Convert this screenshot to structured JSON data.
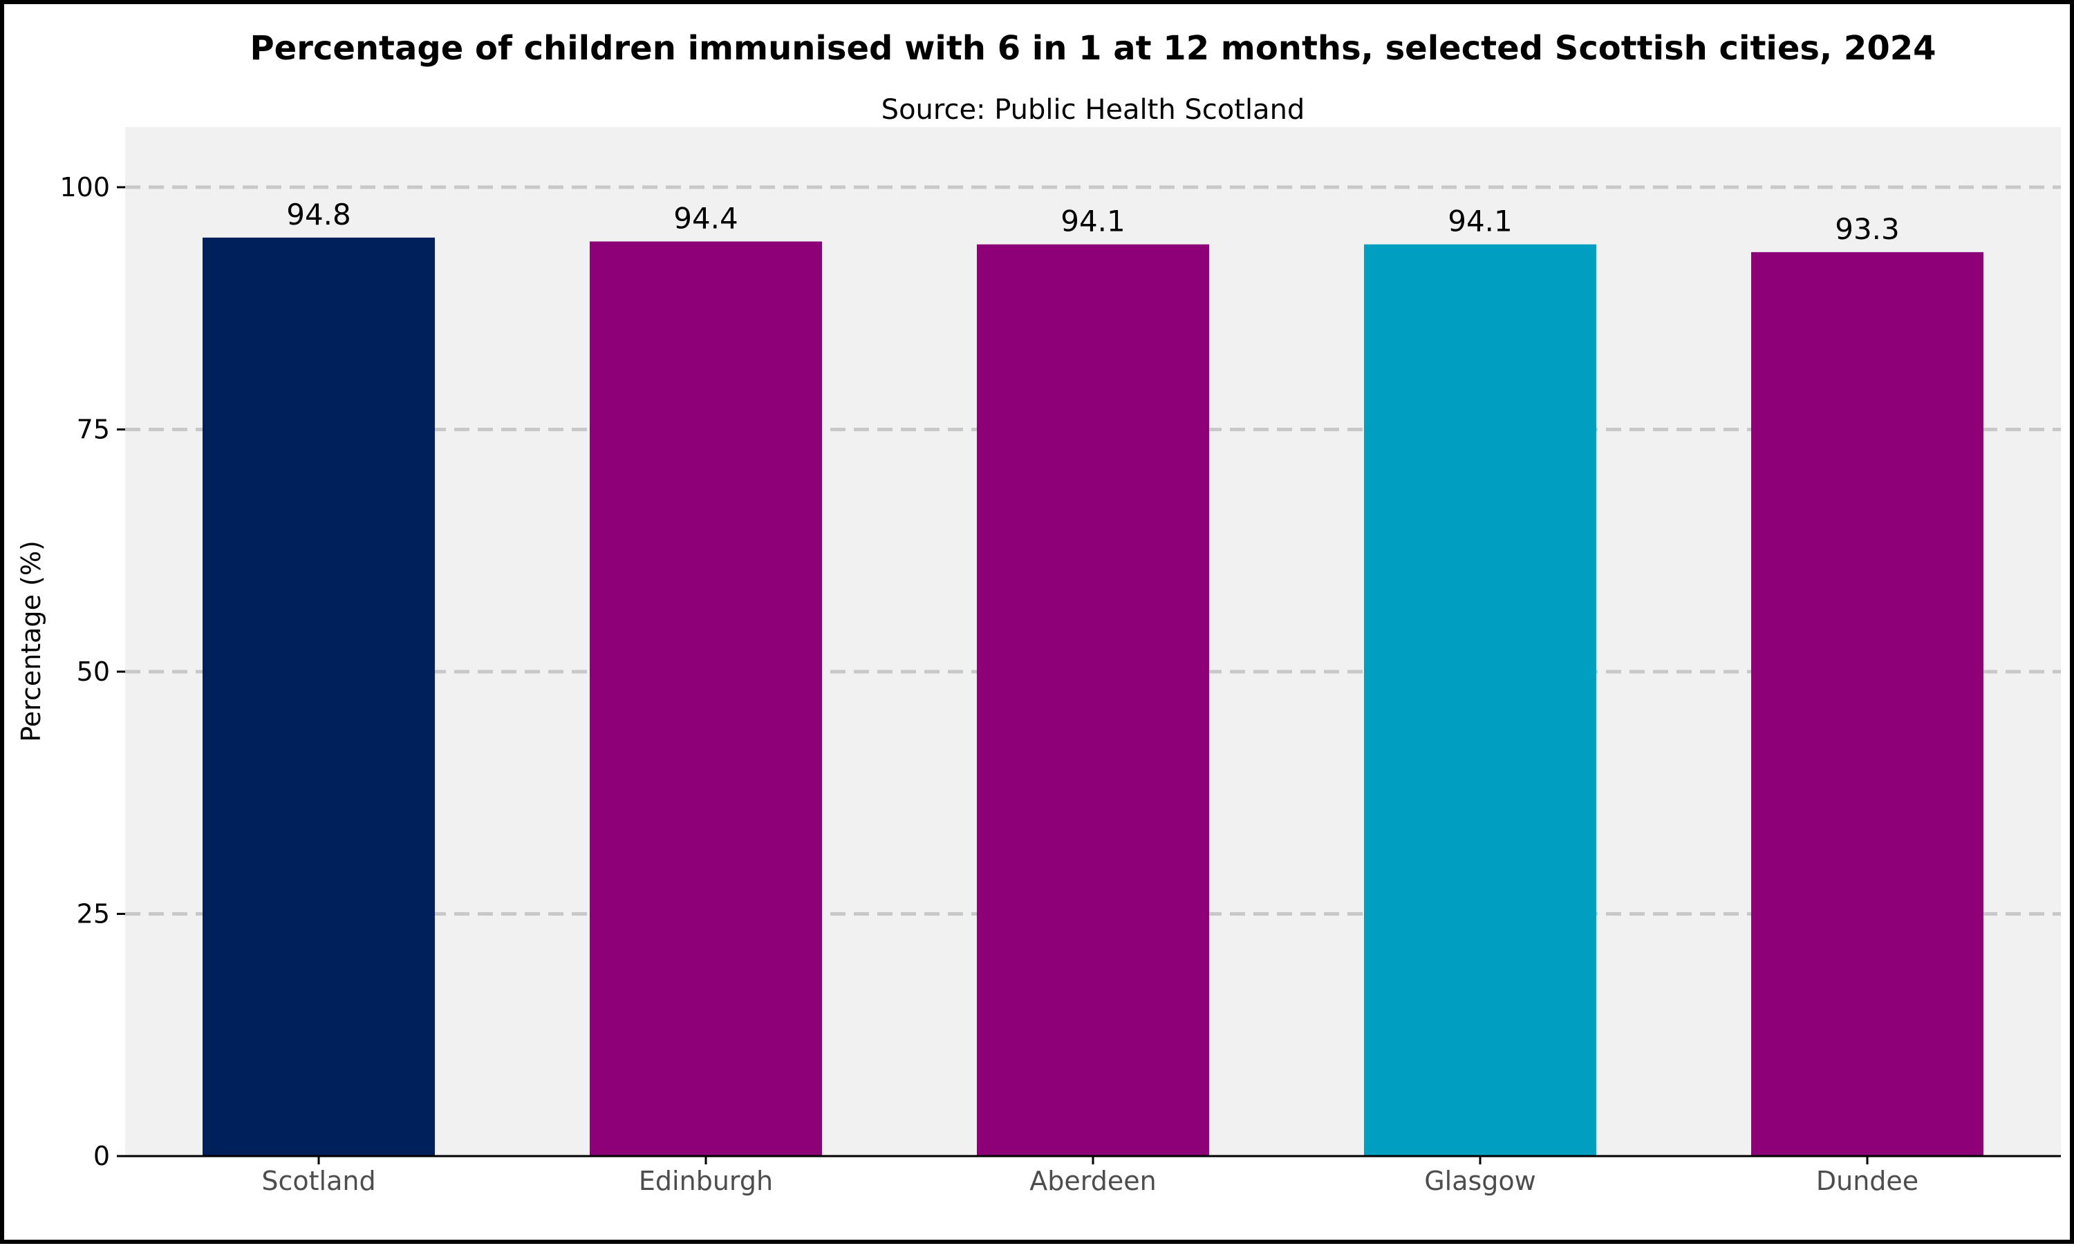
{
  "chart_data": {
    "type": "bar",
    "title": "Percentage of children immunised with 6 in 1 at 12 months, selected Scottish cities, 2024",
    "subtitle": "Source: Public Health Scotland",
    "xlabel": "",
    "ylabel": "Percentage (%)",
    "categories": [
      "Scotland",
      "Edinburgh",
      "Aberdeen",
      "Glasgow",
      "Dundee"
    ],
    "values": [
      94.8,
      94.4,
      94.1,
      94.1,
      93.3
    ],
    "data_labels": [
      "94.8",
      "94.4",
      "94.1",
      "94.1",
      "93.3"
    ],
    "bar_colors": [
      "#00205b",
      "#8e0078",
      "#8e0078",
      "#009ec0",
      "#8e0078"
    ],
    "yticks": [
      0,
      25,
      50,
      75,
      100
    ],
    "ytick_labels": [
      "0",
      "25",
      "50",
      "75",
      "100"
    ],
    "ylim": [
      0,
      106.2
    ],
    "grid": "horizontal dashed",
    "legend": "none",
    "colors": {
      "panel_background": "#f1f1f1",
      "gridline": "#c8c8c8",
      "axis_line": "#000000"
    }
  }
}
